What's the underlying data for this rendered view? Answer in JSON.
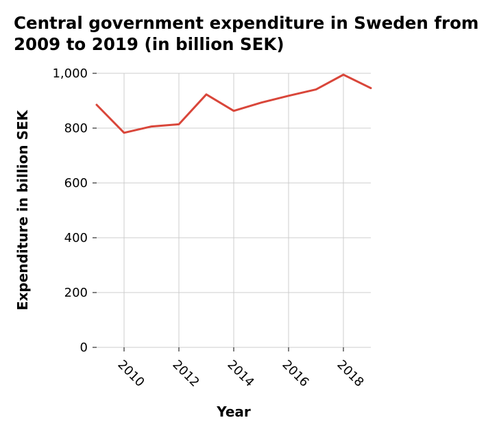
{
  "chart_data": {
    "type": "line",
    "title": "Central government expenditure in Sweden from 2009 to 2019 (in billion SEK)",
    "xlabel": "Year",
    "ylabel": "Expenditure in billion SEK",
    "x": [
      2009,
      2010,
      2011,
      2012,
      2013,
      2014,
      2015,
      2016,
      2017,
      2018,
      2019
    ],
    "series": [
      {
        "values": [
          885,
          783,
          806,
          814,
          923,
          863,
          893,
          918,
          941,
          995,
          946
        ]
      }
    ],
    "xlim": [
      2009,
      2019
    ],
    "ylim": [
      0,
      1000
    ],
    "xticks": [
      2010,
      2012,
      2014,
      2016,
      2018
    ],
    "xtick_labels": [
      "2010",
      "2012",
      "2014",
      "2016",
      "2018"
    ],
    "yticks": [
      0,
      200,
      400,
      600,
      800,
      1000
    ],
    "ytick_labels": [
      "0",
      "200",
      "400",
      "600",
      "800",
      "1,000"
    ],
    "grid": true,
    "line_color": "#d9463a"
  }
}
